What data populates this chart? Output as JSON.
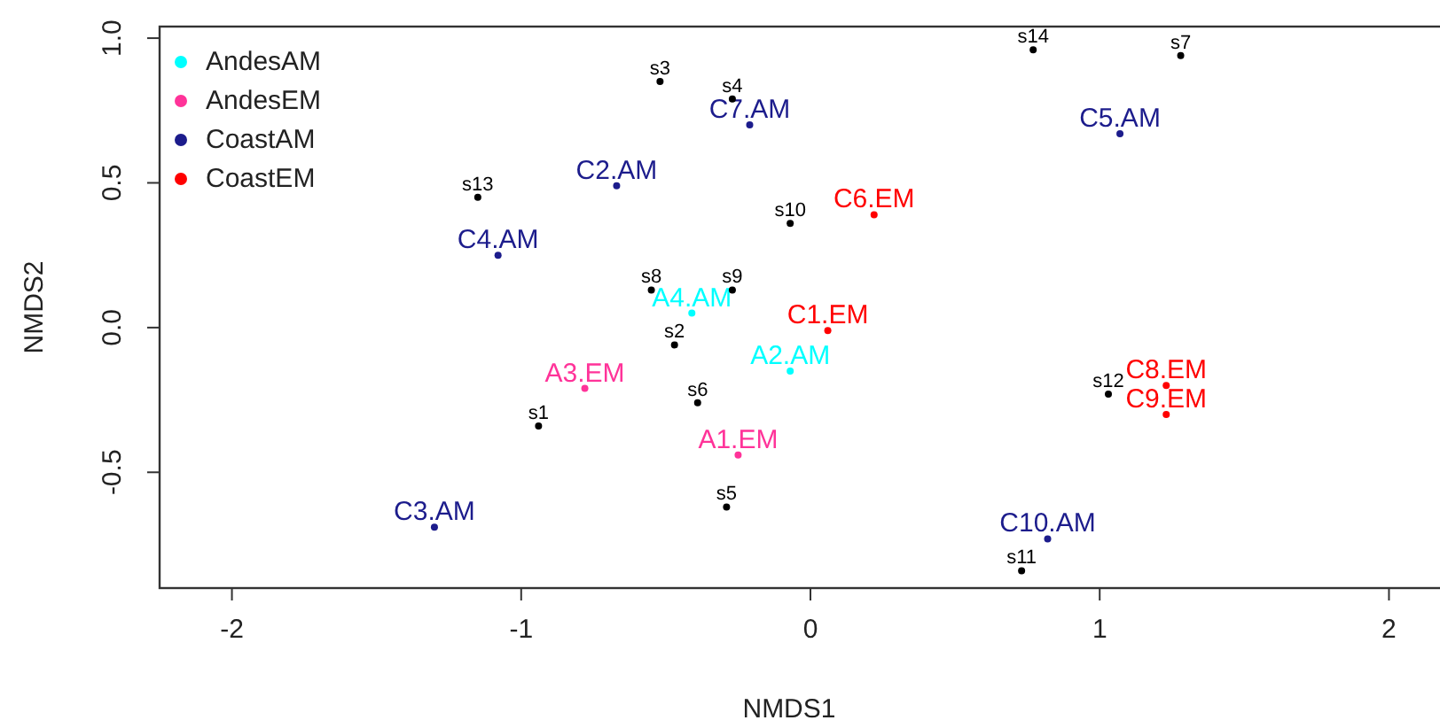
{
  "chart_data": {
    "type": "scatter",
    "xlabel": "NMDS1",
    "ylabel": "NMDS2",
    "xlim": [
      -2.25,
      2.25
    ],
    "ylim": [
      -0.9,
      1.04
    ],
    "xticks": [
      -2,
      -1,
      0,
      1,
      2
    ],
    "yticks": [
      -0.5,
      {
        "value": 0,
        "label": "0.0"
      },
      0.5,
      {
        "value": 1,
        "label": "1.0"
      }
    ],
    "grid": false,
    "legend": "top left",
    "marker": "circle",
    "series": [
      {
        "name": "AndesAM",
        "color": "#00ffff",
        "x": [
          -0.41,
          -0.07
        ],
        "values": [
          0.05,
          -0.15
        ],
        "value_labels": [
          "A4.AM",
          "A2.AM"
        ]
      },
      {
        "name": "AndesEM",
        "color": "#ff3399",
        "x": [
          -0.78,
          -0.25
        ],
        "values": [
          -0.21,
          -0.44
        ],
        "value_labels": [
          "A3.EM",
          "A1.EM"
        ]
      },
      {
        "name": "CoastAM",
        "color": "#1c1c8c",
        "x": [
          -0.21,
          1.07,
          -0.67,
          -1.08,
          -1.3,
          0.82
        ],
        "values": [
          0.7,
          0.67,
          0.49,
          0.25,
          -0.69,
          -0.73
        ],
        "value_labels": [
          "C7.AM",
          "C5.AM",
          "C2.AM",
          "C4.AM",
          "C3.AM",
          "C10.AM"
        ]
      },
      {
        "name": "CoastEM",
        "color": "#ff0000",
        "x": [
          0.22,
          0.06,
          1.23,
          1.23
        ],
        "values": [
          0.39,
          -0.01,
          -0.2,
          -0.3
        ],
        "value_labels": [
          "C6.EM",
          "C1.EM",
          "C8.EM",
          "C9.EM"
        ]
      },
      {
        "color": "#000000",
        "x": [
          -0.94,
          -0.47,
          -0.52,
          -0.27,
          -0.29,
          -0.39,
          1.28,
          -0.55,
          -0.27,
          -0.07,
          0.73,
          1.03,
          -1.15,
          0.77
        ],
        "values": [
          -0.34,
          -0.06,
          0.85,
          0.79,
          -0.62,
          -0.26,
          0.94,
          0.13,
          0.13,
          0.36,
          -0.84,
          -0.23,
          0.45,
          0.96
        ],
        "value_labels": [
          "s1",
          "s2",
          "s3",
          "s4",
          "s5",
          "s6",
          "s7",
          "s8",
          "s9",
          "s10",
          "s11",
          "s12",
          "s13",
          "s14"
        ]
      }
    ]
  }
}
